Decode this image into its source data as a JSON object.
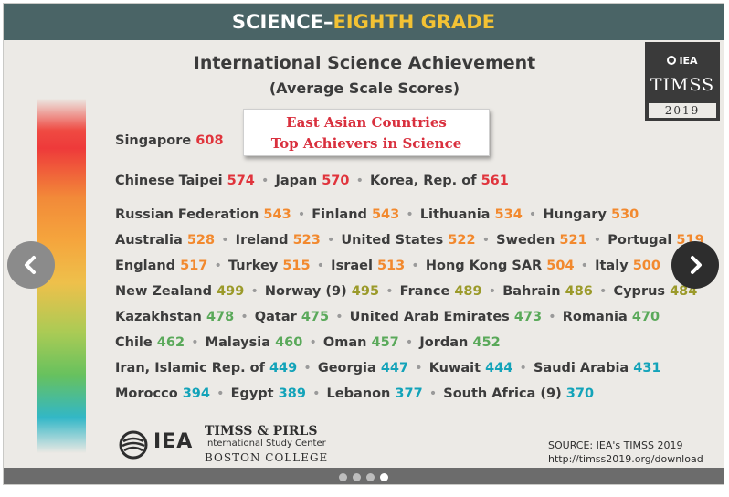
{
  "banner": {
    "part1": "SCIENCE–",
    "part2": "EIGHTH GRADE"
  },
  "title": {
    "line1": "International Science Achievement",
    "line2": "(Average Scale Scores)"
  },
  "badge": {
    "org": "IEA",
    "name": "TIMSS",
    "year": "2019"
  },
  "callout": {
    "line1": "East Asian Countries",
    "line2": "Top Achievers in Science"
  },
  "rows": [
    [
      {
        "name": "Singapore",
        "score": "608",
        "tier": "red"
      }
    ],
    [
      {
        "name": "Chinese Taipei",
        "score": "574",
        "tier": "red"
      },
      {
        "name": "Japan",
        "score": "570",
        "tier": "red"
      },
      {
        "name": "Korea, Rep. of",
        "score": "561",
        "tier": "red"
      }
    ],
    [
      {
        "name": "Russian Federation",
        "score": "543",
        "tier": "orange"
      },
      {
        "name": "Finland",
        "score": "543",
        "tier": "orange"
      },
      {
        "name": "Lithuania",
        "score": "534",
        "tier": "orange"
      },
      {
        "name": "Hungary",
        "score": "530",
        "tier": "orange"
      }
    ],
    [
      {
        "name": "Australia",
        "score": "528",
        "tier": "orange"
      },
      {
        "name": "Ireland",
        "score": "523",
        "tier": "orange"
      },
      {
        "name": "United States",
        "score": "522",
        "tier": "orange"
      },
      {
        "name": "Sweden",
        "score": "521",
        "tier": "orange"
      },
      {
        "name": "Portugal",
        "score": "519",
        "tier": "orange"
      }
    ],
    [
      {
        "name": "England",
        "score": "517",
        "tier": "orange"
      },
      {
        "name": "Turkey",
        "score": "515",
        "tier": "orange"
      },
      {
        "name": "Israel",
        "score": "513",
        "tier": "orange"
      },
      {
        "name": "Hong Kong SAR",
        "score": "504",
        "tier": "orange"
      },
      {
        "name": "Italy",
        "score": "500",
        "tier": "orange"
      }
    ],
    [
      {
        "name": "New Zealand",
        "score": "499",
        "tier": "olive"
      },
      {
        "name": "Norway (9)",
        "score": "495",
        "tier": "olive"
      },
      {
        "name": "France",
        "score": "489",
        "tier": "olive"
      },
      {
        "name": "Bahrain",
        "score": "486",
        "tier": "olive"
      },
      {
        "name": "Cyprus",
        "score": "484",
        "tier": "olive"
      }
    ],
    [
      {
        "name": "Kazakhstan",
        "score": "478",
        "tier": "green"
      },
      {
        "name": "Qatar",
        "score": "475",
        "tier": "green"
      },
      {
        "name": "United Arab Emirates",
        "score": "473",
        "tier": "green"
      },
      {
        "name": "Romania",
        "score": "470",
        "tier": "green"
      }
    ],
    [
      {
        "name": "Chile",
        "score": "462",
        "tier": "green"
      },
      {
        "name": "Malaysia",
        "score": "460",
        "tier": "green"
      },
      {
        "name": "Oman",
        "score": "457",
        "tier": "green"
      },
      {
        "name": "Jordan",
        "score": "452",
        "tier": "green"
      }
    ],
    [
      {
        "name": "Iran, Islamic Rep. of",
        "score": "449",
        "tier": "teal"
      },
      {
        "name": "Georgia",
        "score": "447",
        "tier": "teal"
      },
      {
        "name": "Kuwait",
        "score": "444",
        "tier": "teal"
      },
      {
        "name": "Saudi Arabia",
        "score": "431",
        "tier": "teal"
      }
    ],
    [
      {
        "name": "Morocco",
        "score": "394",
        "tier": "teal"
      },
      {
        "name": "Egypt",
        "score": "389",
        "tier": "teal"
      },
      {
        "name": "Lebanon",
        "score": "377",
        "tier": "teal"
      },
      {
        "name": "South Africa (9)",
        "score": "370",
        "tier": "teal"
      }
    ]
  ],
  "colors": {
    "red": "#e0343c",
    "orange": "#f2892e",
    "olive": "#9b9a2a",
    "green": "#5aa95a",
    "teal": "#13a3b9",
    "banner": "#4a6466",
    "banner_highlight": "#f3c234"
  },
  "logo": {
    "abbr": "IEA",
    "line1": "TIMSS & PIRLS",
    "line2": "International Study Center",
    "line3": "BOSTON COLLEGE"
  },
  "source": {
    "line1": "SOURCE: IEA's TIMSS 2019",
    "line2": "http://timss2019.org/download"
  },
  "carousel": {
    "slide_count": 4,
    "active_index": 3,
    "prev_icon": "chevron-left-icon",
    "next_icon": "chevron-right-icon"
  }
}
